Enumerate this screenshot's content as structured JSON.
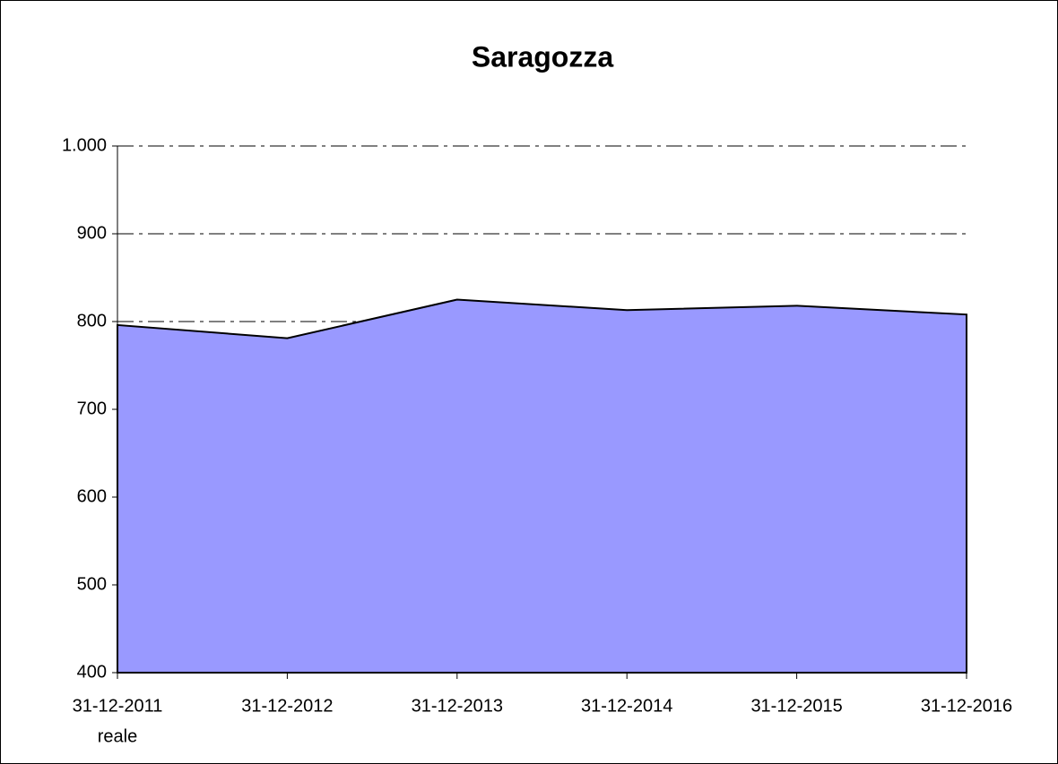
{
  "chart_data": {
    "type": "area",
    "title": "Saragozza",
    "categories": [
      "31-12-2011",
      "31-12-2012",
      "31-12-2013",
      "31-12-2014",
      "31-12-2015",
      "31-12-2016"
    ],
    "series": [
      {
        "name": "reale",
        "color": "#9999ff",
        "values": [
          796,
          781,
          825,
          813,
          818,
          808
        ]
      }
    ],
    "ylim": [
      400,
      1000
    ],
    "yticks": [
      400,
      500,
      600,
      700,
      800,
      900,
      {
        "value": 1000,
        "label": "1.000"
      }
    ],
    "grid": true
  }
}
